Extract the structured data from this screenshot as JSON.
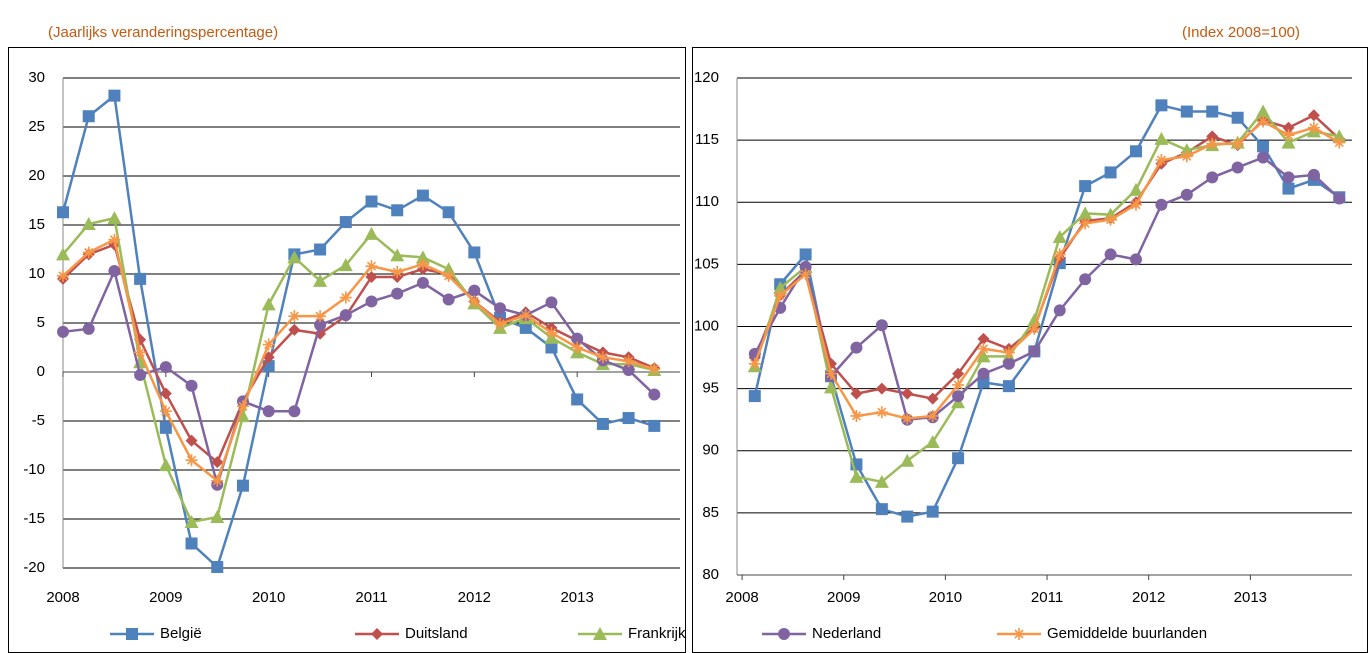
{
  "chart_data": [
    {
      "type": "line",
      "subtitle": "(Jaarlijks veranderingspercentage)",
      "x": [
        2008,
        2008.25,
        2008.5,
        2008.75,
        2009,
        2009.25,
        2009.5,
        2009.75,
        2010,
        2010.25,
        2010.5,
        2010.75,
        2011,
        2011.25,
        2011.5,
        2011.75,
        2012,
        2012.25,
        2012.5,
        2012.75,
        2013,
        2013.25,
        2013.5,
        2013.75
      ],
      "xlim": [
        2008,
        2014
      ],
      "xticks": [
        2008,
        2009,
        2010,
        2011,
        2012,
        2013
      ],
      "ylim": [
        -20,
        30
      ],
      "yticks": [
        -20,
        -15,
        -10,
        -5,
        0,
        5,
        10,
        15,
        20,
        25,
        30
      ],
      "grid": true,
      "series": [
        {
          "name": "België",
          "color": "#4f81bd",
          "marker": "square",
          "values": [
            16.3,
            26.1,
            28.2,
            9.5,
            -5.7,
            -17.5,
            -19.9,
            -11.6,
            0.6,
            12.0,
            12.5,
            15.3,
            17.4,
            16.5,
            18.0,
            16.3,
            12.2,
            5.5,
            4.5,
            2.5,
            -2.8,
            -5.3,
            -4.7,
            -5.5
          ]
        },
        {
          "name": "Duitsland",
          "color": "#c0504d",
          "marker": "diamond",
          "values": [
            9.5,
            12.0,
            13.0,
            3.3,
            -2.2,
            -7.0,
            -9.2,
            -3.0,
            1.5,
            4.3,
            3.9,
            5.7,
            9.7,
            9.7,
            10.5,
            10.0,
            7.2,
            5.1,
            6.1,
            4.5,
            3.2,
            2.0,
            1.5,
            0.4
          ]
        },
        {
          "name": "Frankrijk",
          "color": "#9bbb59",
          "marker": "triangle",
          "values": [
            12.0,
            15.1,
            15.7,
            1.0,
            -9.5,
            -15.3,
            -14.8,
            -4.5,
            6.9,
            11.7,
            9.3,
            10.9,
            14.1,
            11.9,
            11.7,
            10.5,
            7.0,
            4.5,
            5.5,
            3.5,
            2.0,
            0.8,
            0.8,
            0.2
          ]
        },
        {
          "name": "Nederland",
          "color": "#8064a2",
          "marker": "circle",
          "values": [
            4.1,
            4.4,
            10.3,
            -0.3,
            0.5,
            -1.4,
            -11.5,
            -3.0,
            -4.0,
            -4.0,
            4.8,
            5.8,
            7.2,
            8.0,
            9.1,
            7.4,
            8.3,
            6.5,
            5.8,
            7.1,
            3.4,
            1.2,
            0.2,
            -2.3
          ]
        },
        {
          "name": "Gemiddelde buurlanden",
          "color": "#f79646",
          "marker": "star",
          "values": [
            9.8,
            12.2,
            13.5,
            2.0,
            -4.0,
            -9.0,
            -11.1,
            -3.5,
            2.8,
            5.7,
            5.7,
            7.6,
            10.8,
            10.2,
            11.0,
            9.8,
            7.2,
            4.9,
            5.8,
            4.0,
            2.5,
            1.5,
            1.1,
            0.3
          ]
        }
      ]
    },
    {
      "type": "line",
      "subtitle": "(Index 2008=100)",
      "x": [
        2008.125,
        2008.375,
        2008.625,
        2008.875,
        2009.125,
        2009.375,
        2009.625,
        2009.875,
        2010.125,
        2010.375,
        2010.625,
        2010.875,
        2011.125,
        2011.375,
        2011.625,
        2011.875,
        2012.125,
        2012.375,
        2012.625,
        2012.875,
        2013.125,
        2013.375,
        2013.625,
        2013.875
      ],
      "xlim": [
        2007.95,
        2014
      ],
      "xticks": [
        2008,
        2009,
        2010,
        2011,
        2012,
        2013
      ],
      "ylim": [
        80,
        120
      ],
      "yticks": [
        80,
        85,
        90,
        95,
        100,
        105,
        110,
        115,
        120
      ],
      "grid": true,
      "series": [
        {
          "name": "België",
          "color": "#4f81bd",
          "marker": "square",
          "values": [
            94.4,
            103.4,
            105.8,
            96.0,
            88.9,
            85.3,
            84.7,
            85.1,
            89.4,
            95.5,
            95.2,
            98.0,
            105.1,
            111.3,
            112.4,
            114.1,
            117.8,
            117.3,
            117.3,
            116.8,
            114.5,
            111.1,
            111.8,
            110.4
          ]
        },
        {
          "name": "Duitsland",
          "color": "#c0504d",
          "marker": "diamond",
          "values": [
            97.5,
            102.5,
            104.5,
            97.0,
            94.6,
            95.0,
            94.6,
            94.2,
            96.2,
            99.0,
            98.2,
            99.9,
            105.5,
            108.5,
            108.7,
            110.0,
            113.1,
            114.0,
            115.3,
            114.6,
            116.6,
            116.0,
            117.0,
            115.1
          ]
        },
        {
          "name": "Frankrijk",
          "color": "#9bbb59",
          "marker": "triangle",
          "values": [
            96.8,
            103.1,
            104.8,
            95.1,
            87.9,
            87.5,
            89.2,
            90.7,
            93.9,
            97.6,
            97.6,
            100.5,
            107.2,
            109.1,
            109.0,
            111.0,
            115.1,
            114.2,
            114.6,
            114.8,
            117.3,
            114.8,
            115.7,
            115.3
          ]
        },
        {
          "name": "Nederland",
          "color": "#8064a2",
          "marker": "circle",
          "values": [
            97.8,
            101.5,
            104.8,
            96.0,
            98.3,
            100.1,
            92.5,
            92.7,
            94.4,
            96.2,
            97.0,
            98.0,
            101.3,
            103.8,
            105.8,
            105.4,
            109.8,
            110.6,
            112.0,
            112.8,
            113.6,
            112.0,
            112.2,
            110.3
          ]
        },
        {
          "name": "Gemiddelde buurlanden",
          "color": "#f79646",
          "marker": "star",
          "values": [
            97.0,
            102.5,
            104.2,
            96.2,
            92.8,
            93.1,
            92.6,
            92.8,
            95.3,
            98.2,
            97.9,
            99.8,
            105.8,
            108.3,
            108.6,
            109.8,
            113.4,
            113.7,
            114.7,
            114.7,
            116.5,
            115.4,
            116.0,
            114.8
          ]
        }
      ]
    }
  ]
}
